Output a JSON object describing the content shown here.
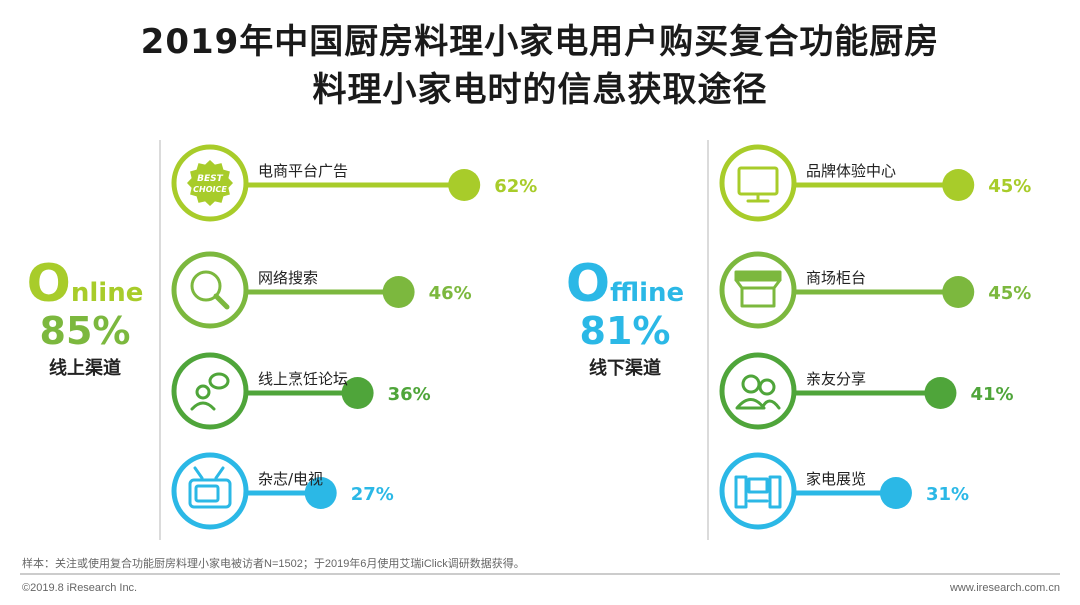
{
  "title_line1": "2019年中国厨房料理小家电用户购买复合功能厨房",
  "title_line2": "料理小家电时的信息获取途径",
  "colors": {
    "lime": "#a8cc2a",
    "green": "#7cb83e",
    "dark_green": "#4fa53a",
    "cyan": "#2bb8e6"
  },
  "online": {
    "initial": "O",
    "rest": "nline",
    "percent": "85%",
    "label": "线上渠道"
  },
  "offline": {
    "initial": "O",
    "rest": "ffline",
    "percent": "81%",
    "label": "线下渠道"
  },
  "badge_text": {
    "line1": "BEST",
    "line2": "CHOICE"
  },
  "footer": {
    "note": "样本：关注或使用复合功能厨房料理小家电被访者N=1502；于2019年6月使用艾瑞iClick调研数据获得。",
    "copyright": "©2019.8 iResearch Inc.",
    "website": "www.iresearch.com.cn"
  },
  "chart_data": [
    {
      "type": "bar",
      "group": "线上渠道",
      "categories": [
        "电商平台广告",
        "网络搜索",
        "线上烹饪论坛",
        "杂志/电视"
      ],
      "values": [
        62,
        46,
        36,
        27
      ],
      "labels": [
        "62%",
        "46%",
        "36%",
        "27%"
      ],
      "colors": [
        "#a8cc2a",
        "#7cb83e",
        "#4fa53a",
        "#2bb8e6"
      ],
      "icons": [
        "best-choice-badge-icon",
        "magnifier-icon",
        "chat-user-icon",
        "tv-icon"
      ]
    },
    {
      "type": "bar",
      "group": "线下渠道",
      "categories": [
        "品牌体验中心",
        "商场柜台",
        "亲友分享",
        "家电展览"
      ],
      "values": [
        45,
        45,
        41,
        31
      ],
      "labels": [
        "45%",
        "45%",
        "41%",
        "31%"
      ],
      "colors": [
        "#a8cc2a",
        "#7cb83e",
        "#4fa53a",
        "#2bb8e6"
      ],
      "icons": [
        "monitor-icon",
        "store-counter-icon",
        "people-icon",
        "home-theater-icon"
      ]
    }
  ]
}
